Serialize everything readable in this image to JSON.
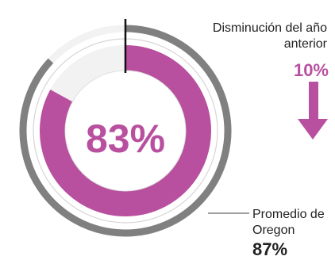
{
  "chart_data": {
    "type": "donut",
    "center_label": "83%",
    "series": [
      {
        "name": "Promedio de Oregon",
        "value": 87,
        "unit": "%"
      },
      {
        "value": 83,
        "unit": "%"
      }
    ],
    "annotations": [
      {
        "label": "Disminución del año anterior",
        "value": "10%",
        "direction": "down"
      },
      {
        "label": "Promedio de Oregon",
        "value": "87%"
      }
    ]
  },
  "colors": {
    "school_arc": "#b8509f",
    "state_arc": "#808080",
    "remainder": "#f2f2f2",
    "arrow": "#b8509f",
    "center_text": "#b8509f"
  },
  "labels": {
    "prior_year_label": "Disminución del año anterior",
    "prior_year_value": "10%",
    "state_label": "Promedio de Oregon",
    "state_value": "87%"
  }
}
